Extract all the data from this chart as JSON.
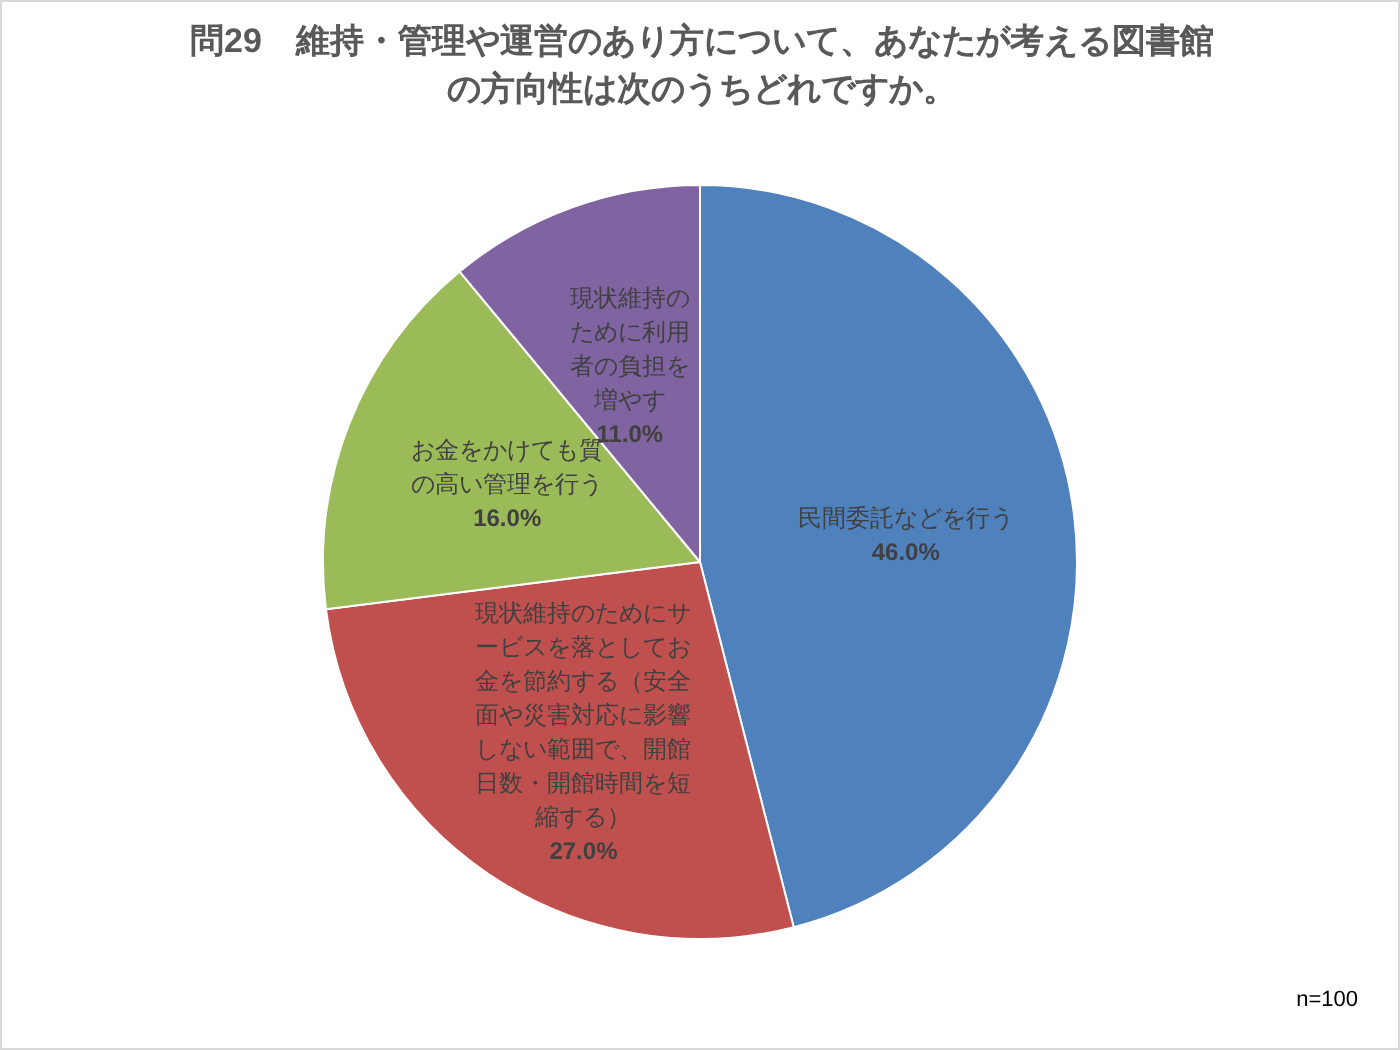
{
  "chart_data": {
    "type": "pie",
    "title": "問29　維持・管理や運営のあり方について、あなたが考える図書館の方向性は次のうちどれですか。",
    "categories": [
      "民間委託などを行う",
      "現状維持のためにサービスを落としてお金を節約する（安全面や災害対応に影響しない範囲で、開館日数・開館時間を短縮する）",
      "お金をかけても質の高い管理を行う",
      "現状維持のために利用者の負担を増やす"
    ],
    "values": [
      46,
      27,
      16,
      11
    ],
    "value_labels": [
      "46.0%",
      "27.0%",
      "16.0%",
      "11.0%"
    ],
    "colors": [
      "#4f81bd",
      "#c0504d",
      "#9bbb59",
      "#8064a2"
    ],
    "annotations": [
      "n=100"
    ],
    "legend": false
  }
}
